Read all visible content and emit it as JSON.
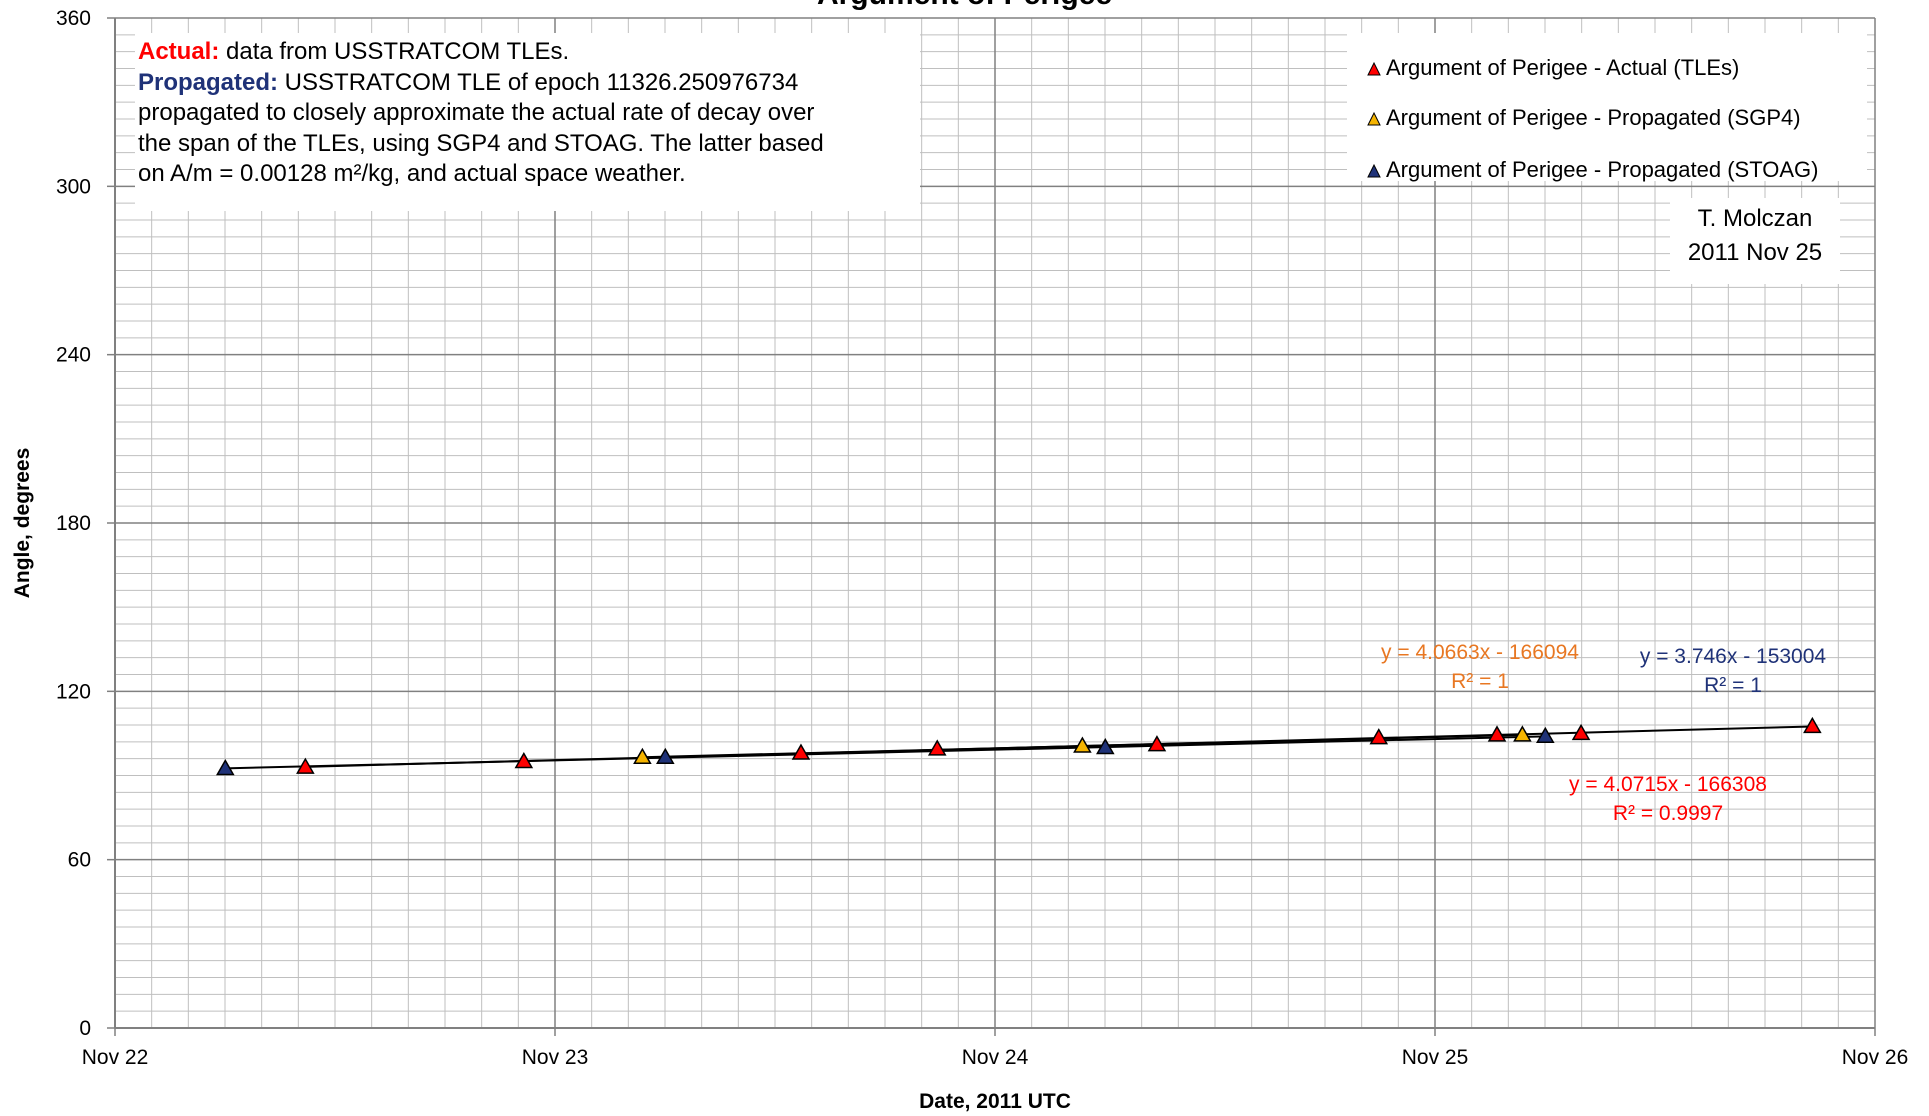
{
  "chart_data": {
    "type": "scatter",
    "title": "Argument of Perigee",
    "xlabel": "Date, 2011 UTC",
    "ylabel": "Angle, degrees",
    "x_ticks": [
      "Nov 22",
      "Nov 23",
      "Nov 24",
      "Nov 25",
      "Nov 26"
    ],
    "x_domain": [
      "2011-11-22",
      "2011-11-26"
    ],
    "ylim": [
      0,
      360
    ],
    "y_ticks": [
      0,
      60,
      120,
      180,
      240,
      300,
      360
    ],
    "grid": true,
    "legend_position": "top-right",
    "series": [
      {
        "name": "Argument of Perigee - Actual (TLEs)",
        "color": "#ff0000",
        "marker": "triangle",
        "points": [
          {
            "x": "2011-11-22 10:23",
            "y": 93
          },
          {
            "x": "2011-11-22 22:18",
            "y": 95
          },
          {
            "x": "2011-11-23 13:25",
            "y": 98
          },
          {
            "x": "2011-11-23 20:51",
            "y": 99.5
          },
          {
            "x": "2011-11-24 08:50",
            "y": 101
          },
          {
            "x": "2011-11-24 20:56",
            "y": 103.5
          },
          {
            "x": "2011-11-25 03:23",
            "y": 104.5
          },
          {
            "x": "2011-11-25 07:58",
            "y": 105
          },
          {
            "x": "2011-11-25 20:35",
            "y": 107.5
          }
        ],
        "trendline": {
          "equation": "y = 4.0715x - 166308",
          "r2": "R² = 0.9997",
          "color": "#ff0000"
        }
      },
      {
        "name": "Argument of Perigee - Propagated (SGP4)",
        "color": "#f5b400",
        "marker": "triangle",
        "points": [
          {
            "x": "2011-11-23 04:46",
            "y": 96.5
          },
          {
            "x": "2011-11-24 04:46",
            "y": 100.5
          },
          {
            "x": "2011-11-25 04:46",
            "y": 104.5
          }
        ],
        "trendline": {
          "equation": "y = 4.0663x - 166094",
          "r2": "R² = 1",
          "color": "#e87722"
        }
      },
      {
        "name": "Argument of Perigee - Propagated (STOAG)",
        "color": "#1f3278",
        "marker": "triangle",
        "points": [
          {
            "x": "2011-11-22 06:01",
            "y": 92.5
          },
          {
            "x": "2011-11-23 06:01",
            "y": 96.5
          },
          {
            "x": "2011-11-24 06:01",
            "y": 100
          },
          {
            "x": "2011-11-25 06:01",
            "y": 104
          }
        ],
        "trendline": {
          "equation": "y = 3.746x - 153004",
          "r2": "R² = 1",
          "color": "#1f3278"
        }
      }
    ]
  },
  "info": {
    "actual_label": "Actual:",
    "actual_text": " data from USSTRATCOM TLEs.",
    "propagated_label": "Propagated:",
    "propagated_text": " USSTRATCOM TLE of epoch 11326.250976734",
    "line3": "propagated to closely approximate the actual rate of decay over",
    "line4": "the span of the TLEs, using SGP4 and STOAG. The latter based",
    "line5": "on A/m = 0.00128 m²/kg, and actual space weather."
  },
  "credit": {
    "author": "T. Molczan",
    "date": "2011 Nov 25"
  }
}
